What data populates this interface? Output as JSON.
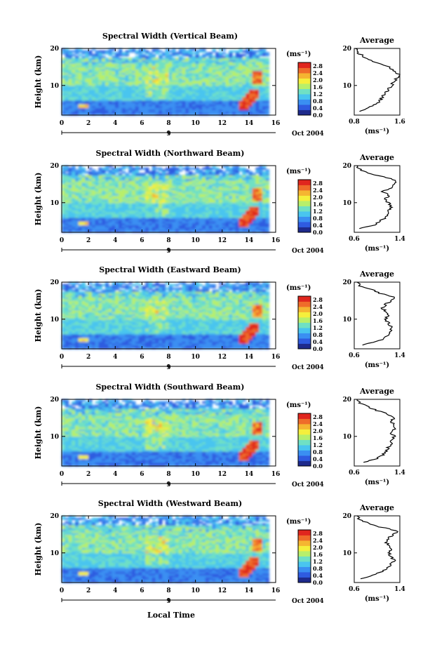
{
  "figure": {
    "colorbar_unit": "(ms⁻¹)",
    "colorbar_ticks": [
      "0.0",
      "0.4",
      "0.8",
      "1.2",
      "1.6",
      "2.0",
      "2.4",
      "2.8"
    ],
    "height_label": "Height (km)",
    "avg_title": "Average",
    "avg_unit": "(ms⁻¹)",
    "time_marker": "9",
    "date_label": "Oct 2004",
    "xlabel": "Local Time",
    "colorscale": [
      "#1e2a8c",
      "#2f5be0",
      "#3a8ff2",
      "#49c5ef",
      "#6fe0c4",
      "#b8ef6a",
      "#f5ef3c",
      "#f5b531",
      "#ef6c2a",
      "#e0261e"
    ]
  },
  "chart_data": [
    {
      "type": "heatmap",
      "title": "Spectral Width (Vertical Beam)",
      "x_ticks": [
        "0",
        "2",
        "4",
        "6",
        "8",
        "10",
        "12",
        "14",
        "16"
      ],
      "y_ticks": [
        "20",
        "10"
      ],
      "xlim": [
        0,
        16
      ],
      "ylim": [
        2,
        20
      ],
      "clim": [
        0.0,
        3.0
      ],
      "average_profile": {
        "xlim": [
          0.8,
          1.6
        ],
        "x_ticks": [
          "0.8",
          "1.6"
        ],
        "y_ticks": [
          "20",
          "10"
        ],
        "height_km": [
          3,
          4,
          5,
          6,
          7,
          8,
          9,
          10,
          11,
          12,
          13,
          14,
          15,
          16,
          17,
          18,
          19,
          20
        ],
        "width_ms": [
          0.9,
          1.05,
          1.2,
          1.25,
          1.3,
          1.35,
          1.4,
          1.45,
          1.5,
          1.55,
          1.58,
          1.5,
          1.4,
          1.2,
          1.05,
          0.95,
          0.85,
          0.82
        ]
      }
    },
    {
      "type": "heatmap",
      "title": "Spectral Width (Northward Beam)",
      "x_ticks": [
        "0",
        "2",
        "4",
        "6",
        "8",
        "10",
        "12",
        "14",
        "16"
      ],
      "y_ticks": [
        "20",
        "10"
      ],
      "xlim": [
        0,
        16
      ],
      "ylim": [
        2,
        20
      ],
      "clim": [
        0.0,
        3.0
      ],
      "average_profile": {
        "xlim": [
          0.6,
          1.4
        ],
        "x_ticks": [
          "0.6",
          "1.4"
        ],
        "y_ticks": [
          "20",
          "10"
        ],
        "height_km": [
          3,
          4,
          5,
          6,
          7,
          8,
          9,
          10,
          11,
          12,
          13,
          14,
          15,
          16,
          17,
          18,
          19,
          20
        ],
        "width_ms": [
          0.7,
          0.95,
          1.05,
          1.15,
          1.2,
          1.2,
          1.25,
          1.2,
          1.15,
          1.2,
          1.1,
          1.25,
          1.3,
          1.35,
          1.1,
          0.85,
          0.7,
          0.65
        ]
      }
    },
    {
      "type": "heatmap",
      "title": "Spectral Width (Eastward Beam)",
      "x_ticks": [
        "0",
        "2",
        "4",
        "6",
        "8",
        "10",
        "12",
        "14",
        "16"
      ],
      "y_ticks": [
        "20",
        "10"
      ],
      "xlim": [
        0,
        16
      ],
      "ylim": [
        2,
        20
      ],
      "clim": [
        0.0,
        3.0
      ],
      "average_profile": {
        "xlim": [
          0.6,
          1.4
        ],
        "x_ticks": [
          "0.6",
          "1.4"
        ],
        "y_ticks": [
          "20",
          "10"
        ],
        "height_km": [
          3,
          4,
          5,
          6,
          7,
          8,
          9,
          10,
          11,
          12,
          13,
          14,
          15,
          16,
          17,
          18,
          19,
          20
        ],
        "width_ms": [
          0.75,
          1.0,
          1.15,
          1.2,
          1.25,
          1.25,
          1.2,
          1.15,
          1.2,
          1.15,
          1.1,
          1.15,
          1.25,
          1.3,
          1.05,
          0.9,
          0.7,
          0.65
        ]
      }
    },
    {
      "type": "heatmap",
      "title": "Spectral Width (Southward Beam)",
      "x_ticks": [
        "0",
        "2",
        "4",
        "6",
        "8",
        "10",
        "12",
        "14",
        "16"
      ],
      "y_ticks": [
        "20",
        "10"
      ],
      "xlim": [
        0,
        16
      ],
      "ylim": [
        2,
        20
      ],
      "clim": [
        0.0,
        3.0
      ],
      "average_profile": {
        "xlim": [
          0.6,
          1.4
        ],
        "x_ticks": [
          "0.6",
          "1.4"
        ],
        "y_ticks": [
          "20",
          "10"
        ],
        "height_km": [
          3,
          4,
          5,
          6,
          7,
          8,
          9,
          10,
          11,
          12,
          13,
          14,
          15,
          16,
          17,
          18,
          19,
          20
        ],
        "width_ms": [
          0.75,
          1.0,
          1.1,
          1.15,
          1.2,
          1.25,
          1.25,
          1.3,
          1.25,
          1.3,
          1.3,
          1.25,
          1.3,
          1.2,
          1.0,
          0.85,
          0.7,
          0.65
        ]
      }
    },
    {
      "type": "heatmap",
      "title": "Spectral Width (Westward Beam)",
      "x_ticks": [
        "0",
        "2",
        "4",
        "6",
        "8",
        "10",
        "12",
        "14",
        "16"
      ],
      "y_ticks": [
        "20",
        "10"
      ],
      "xlim": [
        0,
        16
      ],
      "ylim": [
        2,
        20
      ],
      "clim": [
        0.0,
        3.0
      ],
      "average_profile": {
        "xlim": [
          0.6,
          1.4
        ],
        "x_ticks": [
          "0.6",
          "1.4"
        ],
        "y_ticks": [
          "20",
          "10"
        ],
        "height_km": [
          3,
          4,
          5,
          6,
          7,
          8,
          9,
          10,
          11,
          12,
          13,
          14,
          15,
          16,
          17,
          18,
          19,
          20
        ],
        "width_ms": [
          0.7,
          0.95,
          1.1,
          1.2,
          1.25,
          1.3,
          1.25,
          1.2,
          1.25,
          1.2,
          1.15,
          1.2,
          1.3,
          1.35,
          1.05,
          0.85,
          0.7,
          0.65
        ]
      }
    }
  ]
}
